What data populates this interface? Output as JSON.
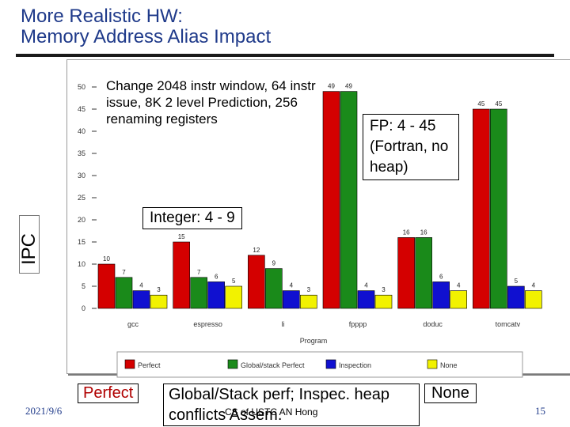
{
  "slide": {
    "title_line1": "More Realistic HW:",
    "title_line2": "Memory Address Alias Impact",
    "footer_date": "2021/9/6",
    "footer_center": "CS of USTC AN Hong",
    "page_number": "15"
  },
  "annotations": {
    "window": "Change  2048 instr window, 64 instr issue, 8K 2 level Prediction, 256 renaming registers",
    "fp": "FP: 4 - 45 (Fortran, no heap)",
    "integer": "Integer: 4 - 9"
  },
  "big_legend": {
    "perfect": "Perfect",
    "global": "Global/Stack perf; Inspec. heap conflicts",
    "assem": "Assem.",
    "none": "None"
  },
  "chart_data": {
    "type": "bar",
    "ylabel": "IPC",
    "xlabel": "Program",
    "ylim": [
      0,
      50
    ],
    "yticks": [
      0,
      5,
      10,
      15,
      20,
      25,
      30,
      35,
      40,
      45,
      50
    ],
    "categories": [
      "gcc",
      "espresso",
      "li",
      "fpppp",
      "doduc",
      "tomcatv"
    ],
    "series": [
      {
        "name": "Perfect",
        "color": "#d40000",
        "values": [
          10,
          15,
          12,
          49,
          16,
          45
        ]
      },
      {
        "name": "Global/stack Perfect",
        "color": "#1a8a1a",
        "values": [
          7,
          7,
          9,
          49,
          16,
          45
        ]
      },
      {
        "name": "Inspection",
        "color": "#1010d0",
        "values": [
          4,
          6,
          4,
          4,
          6,
          5
        ]
      },
      {
        "name": "None",
        "color": "#f2f200",
        "values": [
          3,
          5,
          3,
          3,
          4,
          4
        ]
      }
    ],
    "grid": false,
    "legend_position": "bottom"
  }
}
